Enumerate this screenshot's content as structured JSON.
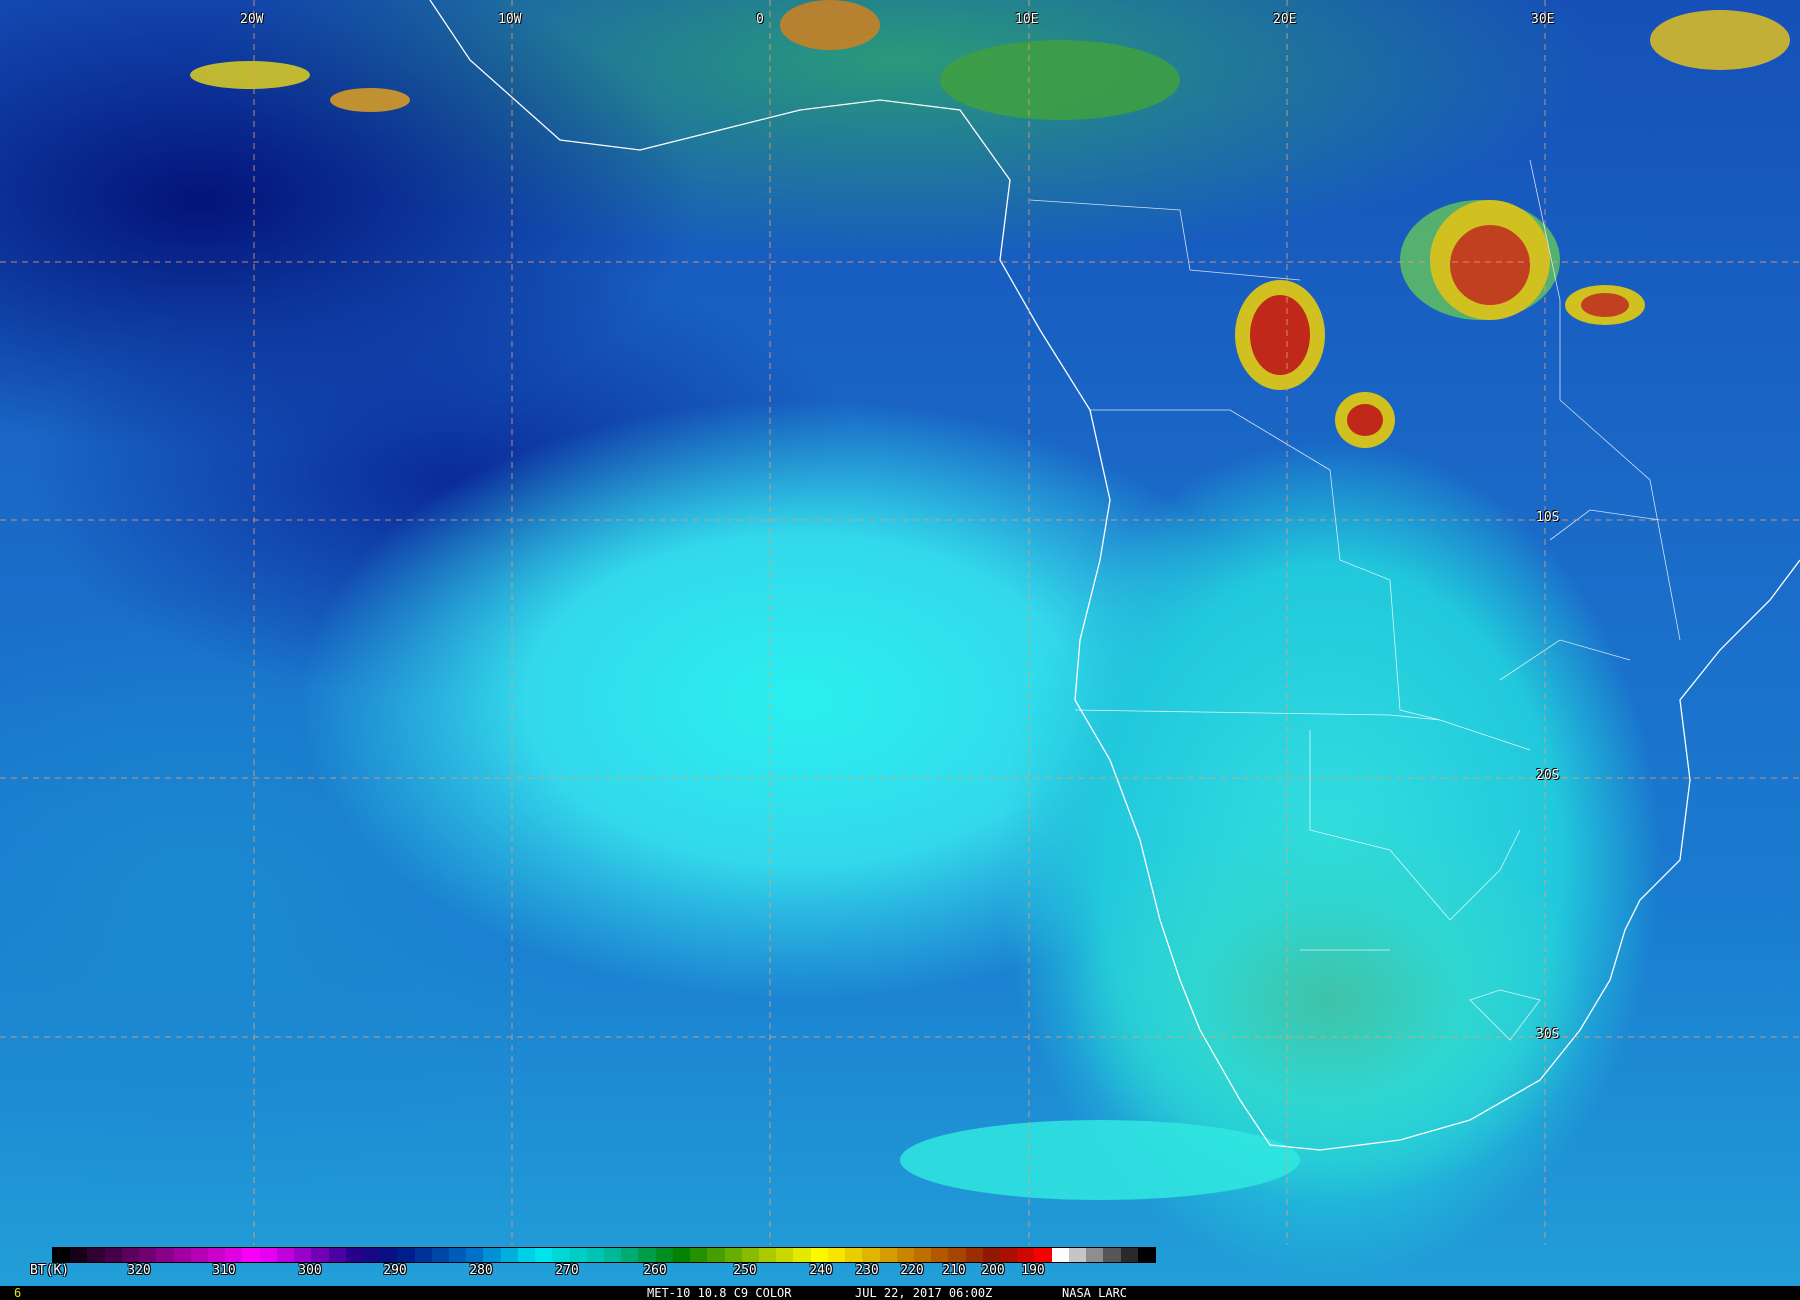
{
  "map": {
    "longitude_labels": [
      "20W",
      "10W",
      "0",
      "10E",
      "20E",
      "30E"
    ],
    "latitude_labels": [
      "10S",
      "20S",
      "30S"
    ],
    "colors": {
      "ocean_clear": "#0a2a9a",
      "low_cloud": "#2af0f0",
      "land": "#3fc3a8",
      "deep_convection": "#c0281a",
      "grid": "#e8a070",
      "borders": "#ffffff"
    }
  },
  "colorbar": {
    "label": "BT(K)",
    "ticks": [
      "320",
      "310",
      "300",
      "290",
      "280",
      "270",
      "260",
      "250",
      "240",
      "230",
      "220",
      "210",
      "200",
      "190"
    ]
  },
  "footer": {
    "frame_number": "6",
    "product": "MET-10 10.8 C9 COLOR",
    "datetime": "JUL 22, 2017 06:00Z",
    "credit": "NASA LARC"
  }
}
